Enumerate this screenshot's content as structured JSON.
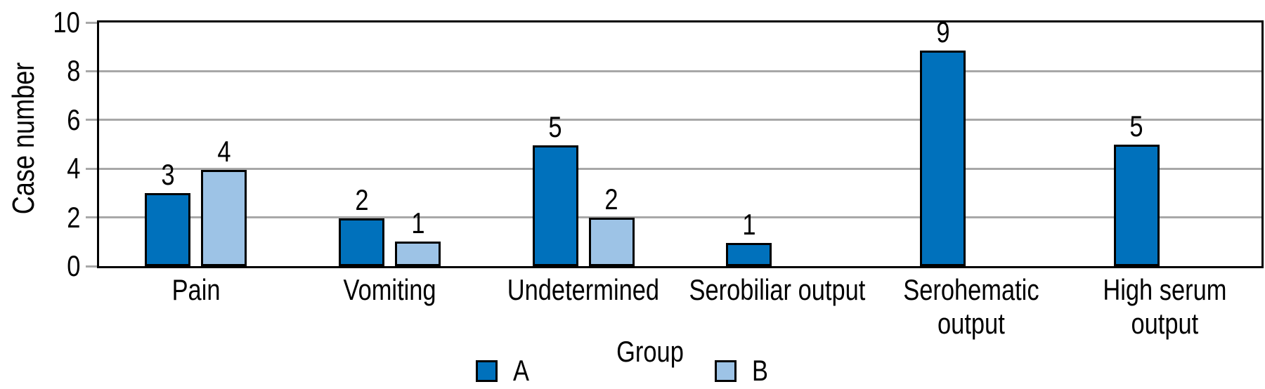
{
  "chart_data": {
    "type": "bar",
    "title": "",
    "categories": [
      "Pain",
      "Vomiting",
      "Undetermined",
      "Serobiliar output",
      "Serohematic\noutput",
      "High serum\noutput"
    ],
    "series": [
      {
        "name": "A",
        "color": "#0071BC",
        "values": [
          3,
          2,
          5,
          1,
          9,
          5
        ],
        "drawn_values": [
          3.0,
          1.95,
          4.95,
          0.95,
          8.85,
          5.0
        ]
      },
      {
        "name": "B",
        "color": "#9DC3E6",
        "values": [
          4,
          1,
          2,
          null,
          null,
          null
        ],
        "drawn_values": [
          3.95,
          1.0,
          2.0,
          null,
          null,
          null
        ]
      }
    ],
    "xlabel": "Group",
    "ylabel": "Case number",
    "ylim": [
      0,
      10
    ],
    "yticks": [
      0,
      2,
      4,
      6,
      8,
      10
    ],
    "grid": "horizontal-gray-lines",
    "legend_position": "bottom",
    "data_labels": true
  },
  "colors": {
    "series_a": "#0071BC",
    "series_b": "#9DC3E6",
    "gridline": "#A8A8A8",
    "frame": "#000000",
    "text": "#000000",
    "background": "#FFFFFF"
  }
}
